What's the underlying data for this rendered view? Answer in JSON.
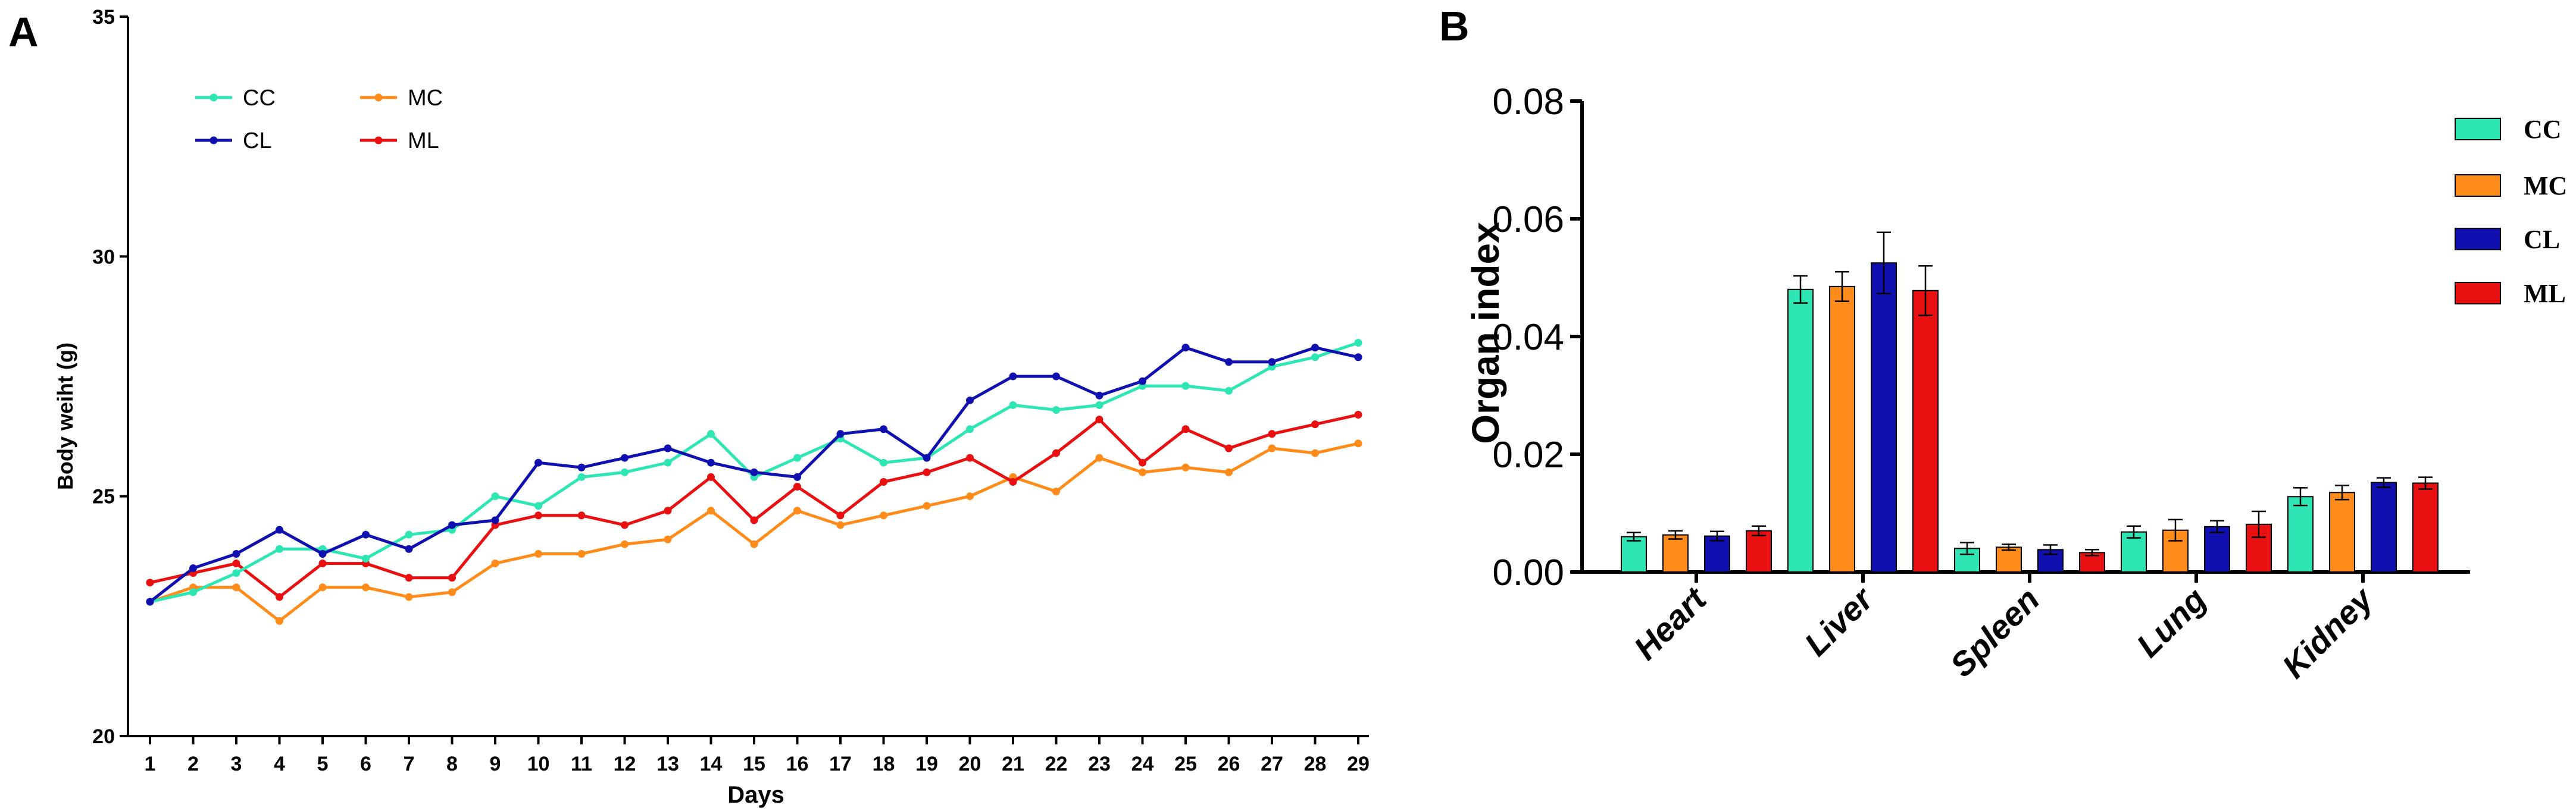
{
  "colors": {
    "CC": "#2ee6b4",
    "MC": "#ff8c1a",
    "CL": "#1010b0",
    "ML": "#e81010",
    "axis": "#000000"
  },
  "chart_data": [
    {
      "panel_label": "A",
      "type": "line",
      "title": "",
      "xlabel": "Days",
      "ylabel": "Body weiht (g)",
      "x": [
        1,
        2,
        3,
        4,
        5,
        6,
        7,
        8,
        9,
        10,
        11,
        12,
        13,
        14,
        15,
        16,
        17,
        18,
        19,
        20,
        21,
        22,
        23,
        24,
        25,
        26,
        27,
        28,
        29
      ],
      "x_tick_labels": [
        "1",
        "2",
        "3",
        "4",
        "5",
        "6",
        "7",
        "8",
        "9",
        "10",
        "11",
        "12",
        "13",
        "14",
        "15",
        "16",
        "17",
        "18",
        "19",
        "20",
        "21",
        "22",
        "23",
        "24",
        "25",
        "26",
        "27",
        "28",
        "29"
      ],
      "ylim": [
        20,
        35
      ],
      "y_ticks": [
        20,
        25,
        30,
        35
      ],
      "y_tick_labels": [
        "20",
        "25",
        "30",
        "35"
      ],
      "legend_position": "top-left",
      "series": [
        {
          "name": "CC",
          "values": [
            22.8,
            23.0,
            23.4,
            23.9,
            23.9,
            23.7,
            24.2,
            24.3,
            25.0,
            24.8,
            25.4,
            25.5,
            25.7,
            26.3,
            25.4,
            25.8,
            26.2,
            25.7,
            25.8,
            26.4,
            26.9,
            26.8,
            26.9,
            27.3,
            27.3,
            27.2,
            27.7,
            27.9,
            28.2
          ]
        },
        {
          "name": "CL",
          "values": [
            22.8,
            23.5,
            23.8,
            24.3,
            23.8,
            24.2,
            23.9,
            24.4,
            24.5,
            25.7,
            25.6,
            25.8,
            26.0,
            25.7,
            25.5,
            25.4,
            26.3,
            26.4,
            25.8,
            27.0,
            27.5,
            27.5,
            27.1,
            27.4,
            28.1,
            27.8,
            27.8,
            28.1,
            27.9
          ]
        },
        {
          "name": "MC",
          "values": [
            22.8,
            23.1,
            23.1,
            22.4,
            23.1,
            23.1,
            22.9,
            23.0,
            23.6,
            23.8,
            23.8,
            24.0,
            24.1,
            24.7,
            24.0,
            24.7,
            24.4,
            24.6,
            24.8,
            25.0,
            25.4,
            25.1,
            25.8,
            25.5,
            25.6,
            25.5,
            26.0,
            25.9,
            26.1
          ]
        },
        {
          "name": "ML",
          "values": [
            23.2,
            23.4,
            23.6,
            22.9,
            23.6,
            23.6,
            23.3,
            23.3,
            24.4,
            24.6,
            24.6,
            24.4,
            24.7,
            25.4,
            24.5,
            25.2,
            24.6,
            25.3,
            25.5,
            25.8,
            25.3,
            25.9,
            26.6,
            25.7,
            26.4,
            26.0,
            26.3,
            26.5,
            26.7
          ]
        }
      ]
    },
    {
      "panel_label": "B",
      "type": "bar",
      "title": "",
      "xlabel": "",
      "ylabel": "Organ index",
      "categories": [
        "Heart",
        "Liver",
        "Spleen",
        "Lung",
        "Kidney"
      ],
      "ylim": [
        0,
        0.08
      ],
      "y_ticks": [
        0,
        0.02,
        0.04,
        0.06,
        0.08
      ],
      "y_tick_labels": [
        "0.00",
        "0.02",
        "0.04",
        "0.06",
        "0.08"
      ],
      "legend_position": "right",
      "series": [
        {
          "name": "CC",
          "values": [
            0.006,
            0.048,
            0.004,
            0.0068,
            0.0128
          ],
          "errors": [
            0.0007,
            0.0023,
            0.001,
            0.001,
            0.0015
          ]
        },
        {
          "name": "MC",
          "values": [
            0.0063,
            0.0485,
            0.0042,
            0.0071,
            0.0135
          ],
          "errors": [
            0.0007,
            0.0025,
            0.0005,
            0.0018,
            0.0012
          ]
        },
        {
          "name": "CL",
          "values": [
            0.0061,
            0.0525,
            0.0038,
            0.0077,
            0.0152
          ],
          "errors": [
            0.0008,
            0.0052,
            0.0008,
            0.001,
            0.0008
          ]
        },
        {
          "name": "ML",
          "values": [
            0.007,
            0.0478,
            0.0033,
            0.0081,
            0.0151
          ],
          "errors": [
            0.0008,
            0.0042,
            0.0005,
            0.0022,
            0.001
          ]
        }
      ]
    }
  ]
}
